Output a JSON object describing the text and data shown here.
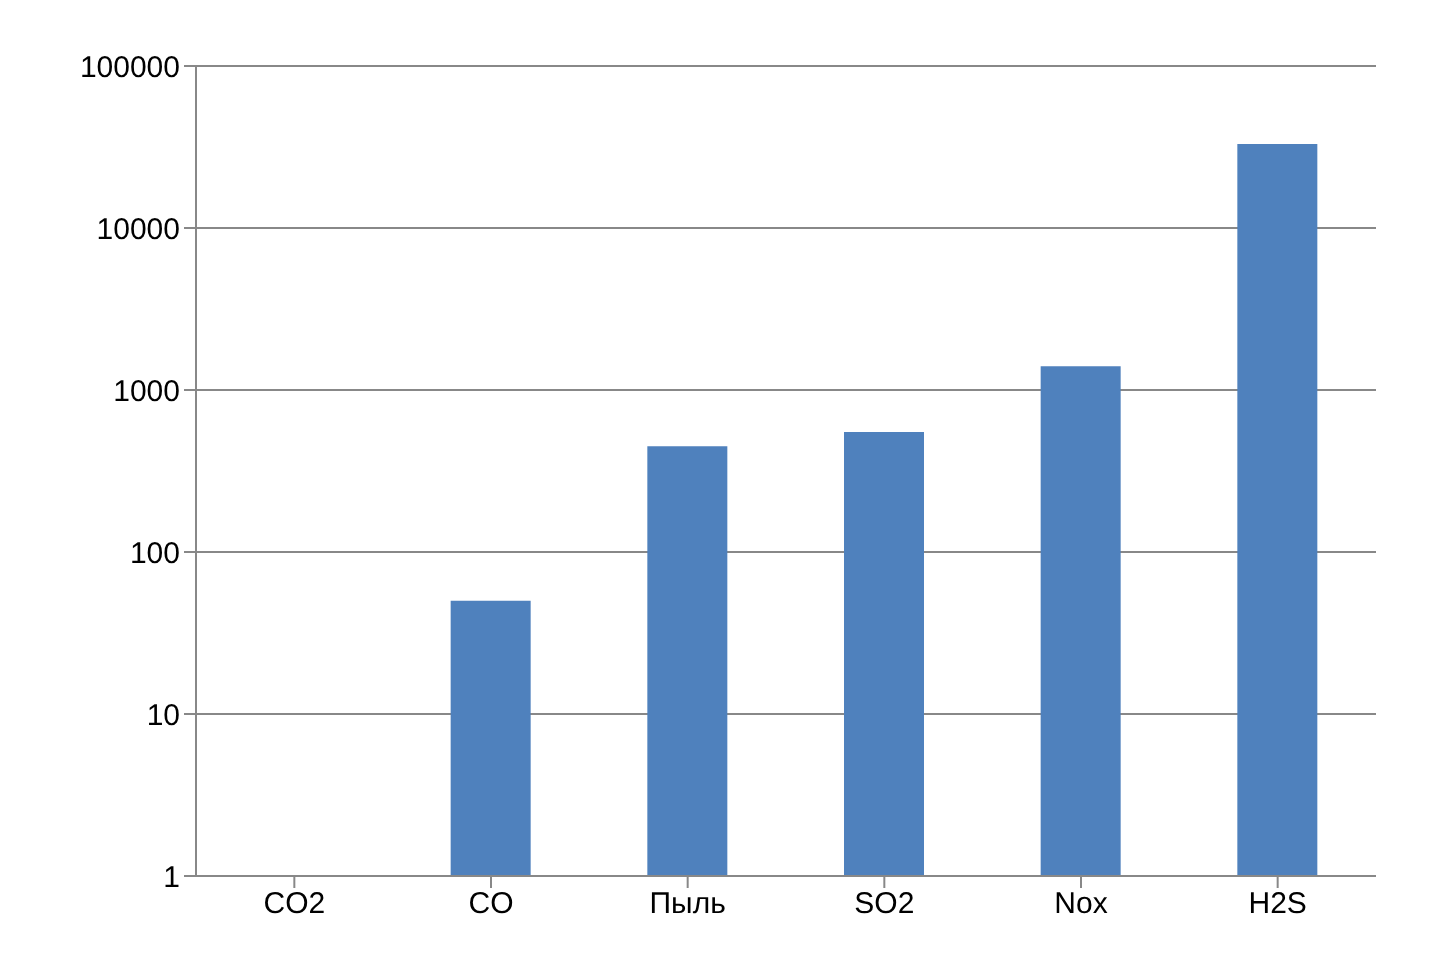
{
  "chart_data": {
    "type": "bar",
    "categories": [
      "CO2",
      "CO",
      "Пыль",
      "SO2",
      "Nox",
      "H2S"
    ],
    "values": [
      1,
      50,
      450,
      550,
      1400,
      33000
    ],
    "color": "#4f81bd",
    "ylim": [
      1,
      100000
    ],
    "yticks": [
      1,
      10,
      100,
      1000,
      10000,
      100000
    ],
    "log": true,
    "grid": "y"
  }
}
